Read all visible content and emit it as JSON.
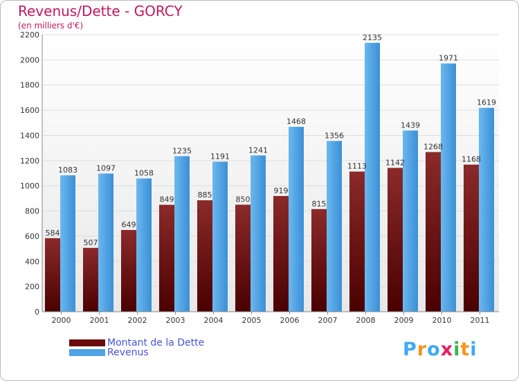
{
  "chart_data": {
    "type": "bar",
    "title": "Revenus/Dette - GORCY",
    "subtitle": "(en milliers d'€)",
    "xlabel": "",
    "ylabel": "",
    "ylim": [
      0,
      2200
    ],
    "yticks": [
      0,
      200,
      400,
      600,
      800,
      1000,
      1200,
      1400,
      1600,
      1800,
      2000,
      2200
    ],
    "grid": true,
    "categories": [
      "2000",
      "2001",
      "2002",
      "2003",
      "2004",
      "2005",
      "2006",
      "2007",
      "2008",
      "2009",
      "2010",
      "2011"
    ],
    "series": [
      {
        "name": "Montant de la Dette",
        "color": "#7a1a1a",
        "values": [
          584,
          507,
          649,
          849,
          885,
          850,
          919,
          815,
          1113,
          1142,
          1268,
          1168
        ]
      },
      {
        "name": "Revenus",
        "color": "#4da3e6",
        "values": [
          1083,
          1097,
          1058,
          1235,
          1191,
          1241,
          1468,
          1356,
          2135,
          1439,
          1971,
          1619
        ]
      }
    ],
    "legend_position": "bottom-left"
  },
  "logo": {
    "text": "Proxiti",
    "colors": [
      "#3fa9f5",
      "#f7941d",
      "#3fa9f5",
      "#e91e63",
      "#39b54a",
      "#f7941d",
      "#3fa9f5"
    ]
  }
}
